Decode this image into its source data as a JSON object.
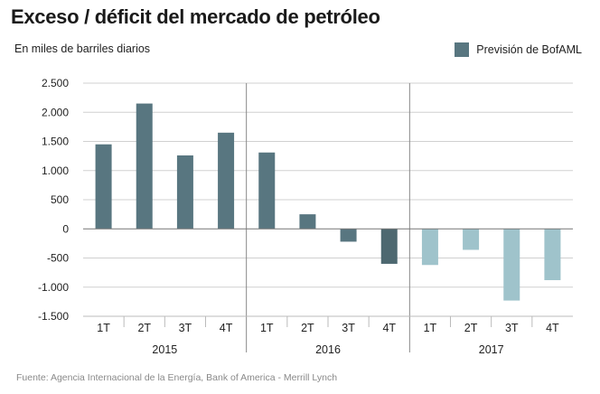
{
  "title": "Exceso / déficit del mercado de petróleo",
  "subtitle": "En miles de barriles diarios",
  "source": "Fuente: Agencia Internacional de la Energía, Bank of America - Merrill Lynch",
  "legend": {
    "label": "Previsión de BofAML",
    "color": "#587680"
  },
  "colors": {
    "actual": "#587680",
    "forecast_2016_q4": "#4d6870",
    "forecast_2017": "#9fc3cb",
    "grid": "#d0d0d0",
    "zero": "#777777",
    "divider": "#888888"
  },
  "chart_data": {
    "type": "bar",
    "title": "Exceso / déficit del mercado de petróleo",
    "ylabel": "En miles de barriles diarios",
    "xlabel": "",
    "ylim": [
      -1500,
      2500
    ],
    "yticks": [
      2500,
      2000,
      1500,
      1000,
      500,
      0,
      -500,
      -1000,
      -1500
    ],
    "ytick_labels": [
      "2.500",
      "2.000",
      "1.500",
      "1.000",
      "500",
      "0",
      "-500",
      "-1.000",
      "-1.500"
    ],
    "categories": [
      "1T",
      "2T",
      "3T",
      "4T",
      "1T",
      "2T",
      "3T",
      "4T",
      "1T",
      "2T",
      "3T",
      "4T"
    ],
    "groups": [
      {
        "label": "2015",
        "start": 0,
        "end": 3
      },
      {
        "label": "2016",
        "start": 4,
        "end": 7
      },
      {
        "label": "2017",
        "start": 8,
        "end": 11
      }
    ],
    "values": [
      1450,
      2150,
      1260,
      1650,
      1310,
      250,
      -220,
      -600,
      -620,
      -360,
      -1230,
      -880
    ],
    "bar_color_keys": [
      "actual",
      "actual",
      "actual",
      "actual",
      "actual",
      "actual",
      "actual",
      "forecast_2016_q4",
      "forecast_2017",
      "forecast_2017",
      "forecast_2017",
      "forecast_2017"
    ],
    "legend": [
      "Previsión de BofAML"
    ]
  }
}
